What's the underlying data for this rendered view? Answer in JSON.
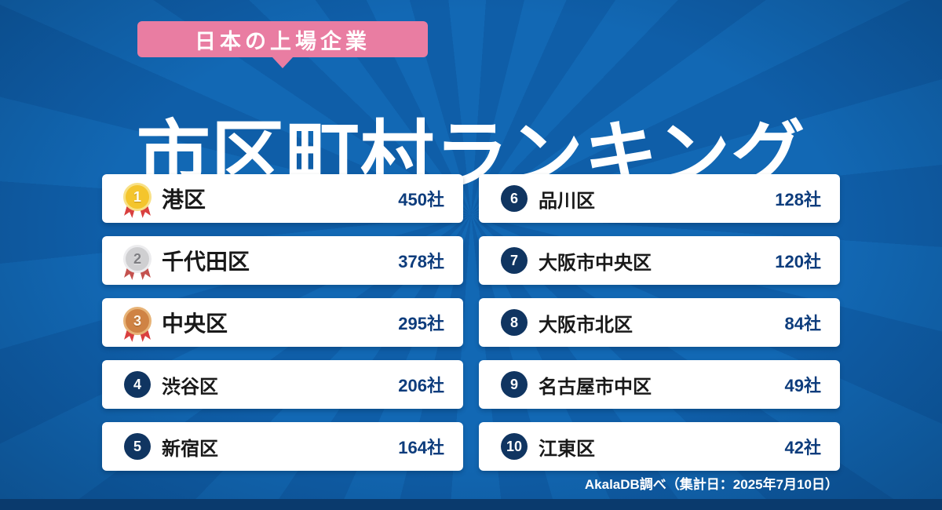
{
  "badge": {
    "label": "日本の上場企業"
  },
  "title": "市区町村ランキング",
  "footer": {
    "source_note": "AkalaDB調べ（集計日：2025年7月10日）"
  },
  "chart_data": {
    "type": "table",
    "title": "市区町村ランキング",
    "subtitle": "日本の上場企業",
    "unit": "社",
    "categories": [
      "港区",
      "千代田区",
      "中央区",
      "渋谷区",
      "新宿区",
      "品川区",
      "大阪市中央区",
      "大阪市北区",
      "名古屋市中区",
      "江東区"
    ],
    "values": [
      450,
      378,
      295,
      206,
      164,
      128,
      120,
      84,
      49,
      42
    ],
    "legend": "none",
    "source": "AkalaDB調べ（集計日：2025年7月10日）"
  },
  "rankings": [
    {
      "rank": "1",
      "name": "港区",
      "value_label": "450社"
    },
    {
      "rank": "2",
      "name": "千代田区",
      "value_label": "378社"
    },
    {
      "rank": "3",
      "name": "中央区",
      "value_label": "295社"
    },
    {
      "rank": "4",
      "name": "渋谷区",
      "value_label": "206社"
    },
    {
      "rank": "5",
      "name": "新宿区",
      "value_label": "164社"
    },
    {
      "rank": "6",
      "name": "品川区",
      "value_label": "128社"
    },
    {
      "rank": "7",
      "name": "大阪市中央区",
      "value_label": "120社"
    },
    {
      "rank": "8",
      "name": "大阪市北区",
      "value_label": "84社"
    },
    {
      "rank": "9",
      "name": "名古屋市中区",
      "value_label": "49社"
    },
    {
      "rank": "10",
      "name": "江東区",
      "value_label": "42社"
    }
  ]
}
